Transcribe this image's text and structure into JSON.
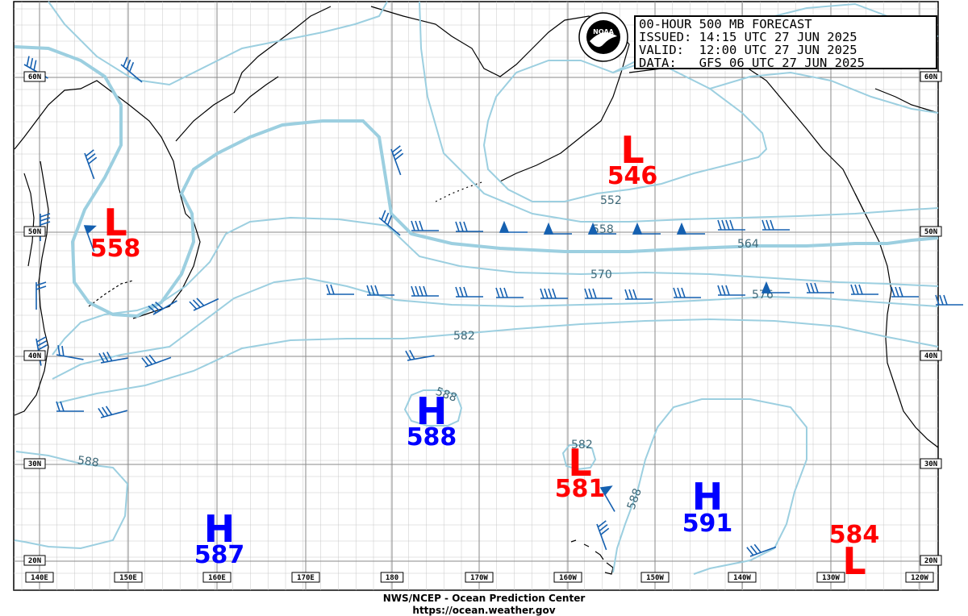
{
  "header": {
    "lines": [
      "00-HOUR 500 MB FORECAST",
      "ISSUED: 14:15 UTC 27 JUN 2025",
      "VALID:  12:00 UTC 27 JUN 2025",
      "DATA:   GFS 06 UTC 27 JUN 2025"
    ]
  },
  "logo": {
    "text": "NOAA",
    "ring": "NATIONAL OCEANIC AND ATMOSPHERIC ADMINISTRATION · U.S. DEPARTMENT OF COMMERCE"
  },
  "footer": {
    "line1": "NWS/NCEP - Ocean Prediction Center",
    "line2": "https://ocean.weather.gov"
  },
  "lat_labels": [
    "60N",
    "50N",
    "40N",
    "30N",
    "20N"
  ],
  "lon_labels": [
    "140E",
    "150E",
    "160E",
    "170E",
    "180",
    "170W",
    "160W",
    "150W",
    "140W",
    "130W",
    "120W"
  ],
  "contour_labels": [
    "552",
    "558",
    "564",
    "570",
    "576",
    "582",
    "588",
    "582",
    "588",
    "588"
  ],
  "pressure_centers": [
    {
      "type": "L",
      "value": "558"
    },
    {
      "type": "L",
      "value": "546"
    },
    {
      "type": "H",
      "value": "588"
    },
    {
      "type": "L",
      "value": "581"
    },
    {
      "type": "H",
      "value": "591"
    },
    {
      "type": "H",
      "value": "587"
    },
    {
      "type": "L",
      "value": "584"
    }
  ],
  "colors": {
    "low": "#ff0000",
    "high": "#0000ff",
    "contour": "#9ccfe0",
    "barb": "#1560b0",
    "grid": "#9a9a9a",
    "land": "#000000"
  }
}
